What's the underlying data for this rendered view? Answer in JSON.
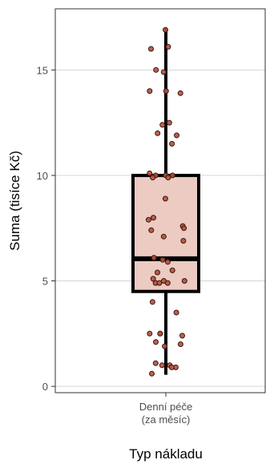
{
  "chart_data": {
    "type": "box",
    "title": "",
    "xlabel": "Typ nákladu",
    "ylabel": "Suma (tisíce Kč)",
    "categories": [
      [
        "Denní péče",
        "(za měsíc)"
      ]
    ],
    "yticks": [
      0,
      5,
      10,
      15
    ],
    "ylim": [
      -0.3,
      17.9
    ],
    "grid": "horizontal major lines",
    "box": {
      "min": 0.55,
      "q1": 4.5,
      "median": 6.05,
      "q3": 10.0,
      "max": 17.0
    },
    "points": [
      16.9,
      16.1,
      16.0,
      15.0,
      14.9,
      14.0,
      14.0,
      13.9,
      12.5,
      12.4,
      12.0,
      11.9,
      11.5,
      10.1,
      10.0,
      10.0,
      10.0,
      9.9,
      9.9,
      8.9,
      8.0,
      7.9,
      7.6,
      7.5,
      7.4,
      7.1,
      6.9,
      6.1,
      6.0,
      5.9,
      5.5,
      5.4,
      5.1,
      5.0,
      5.0,
      4.9,
      4.9,
      4.9,
      4.0,
      3.5,
      2.5,
      2.5,
      2.5,
      2.4,
      2.1,
      2.0,
      1.9,
      1.1,
      1.0,
      1.0,
      0.9,
      0.9,
      0.6
    ],
    "colors": {
      "box_fill": "#eccbc2",
      "box_stroke": "#000000",
      "point_fill": "#b4513c",
      "point_stroke": "#3a140d",
      "grid": "#d6d6d6",
      "panel_border": "#333333"
    }
  }
}
